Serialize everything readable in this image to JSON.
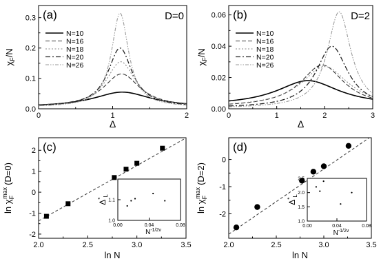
{
  "chart_data": [
    {
      "panel": "a",
      "type": "line",
      "panel_label": "(a)",
      "corner_label": "D=0",
      "xlabel": "Δ",
      "ylabel": "χF/N",
      "ylabel_main": "χ",
      "ylabel_sub": "F",
      "ylabel_tail": "/N",
      "xlim": [
        0,
        2
      ],
      "ylim": [
        0,
        0.34
      ],
      "xticks": [
        "0",
        "1",
        "2"
      ],
      "yticks": [
        "0.0",
        "0.1",
        "0.2",
        "0.3"
      ],
      "legend_position": "upper-left",
      "series": [
        {
          "name": "N=10",
          "peak_x": 1.13,
          "peak_y": 0.055,
          "base": 0.005,
          "width": 0.48
        },
        {
          "name": "N=16",
          "peak_x": 1.12,
          "peak_y": 0.115,
          "base": 0.005,
          "width": 0.3
        },
        {
          "name": "N=18",
          "peak_x": 1.11,
          "peak_y": 0.155,
          "base": 0.005,
          "width": 0.24
        },
        {
          "name": "N=20",
          "peak_x": 1.1,
          "peak_y": 0.2,
          "base": 0.005,
          "width": 0.2
        },
        {
          "name": "N=26",
          "peak_x": 1.1,
          "peak_y": 0.315,
          "base": 0.005,
          "width": 0.14
        }
      ]
    },
    {
      "panel": "b",
      "type": "line",
      "panel_label": "(b)",
      "corner_label": "D=2",
      "xlabel": "Δ",
      "ylabel": "χF/N",
      "ylabel_main": "χ",
      "ylabel_sub": "F",
      "ylabel_tail": "/N",
      "xlim": [
        0,
        3
      ],
      "ylim": [
        0,
        0.066
      ],
      "xticks": [
        "0",
        "1",
        "2",
        "3"
      ],
      "yticks": [
        "0.00",
        "0.02",
        "0.04",
        "0.06"
      ],
      "legend_position": "upper-left",
      "series": [
        {
          "name": "N=10",
          "peak_x": 1.65,
          "peak_y": 0.018,
          "base": 0.002,
          "width": 0.8
        },
        {
          "name": "N=16",
          "peak_x": 1.95,
          "peak_y": 0.028,
          "base": 0.001,
          "width": 0.55
        },
        {
          "name": "N=18",
          "peak_x": 2.0,
          "peak_y": 0.027,
          "base": 0.001,
          "width": 0.6
        },
        {
          "name": "N=20",
          "peak_x": 2.15,
          "peak_y": 0.04,
          "base": 0.0005,
          "width": 0.4
        },
        {
          "name": "N=26",
          "peak_x": 2.3,
          "peak_y": 0.062,
          "base": 0.0003,
          "width": 0.3
        }
      ]
    },
    {
      "panel": "c",
      "type": "scatter",
      "panel_label": "(c)",
      "xlabel": "ln N",
      "ylabel": "ln χF max (D=0)",
      "ylabel_pre": "ln χ",
      "ylabel_sub": "F",
      "ylabel_sup": "max",
      "ylabel_post": "(D=0)",
      "marker": "square",
      "xlim": [
        2.0,
        3.5
      ],
      "ylim": [
        -2.2,
        2.6
      ],
      "xticks": [
        "2.0",
        "2.5",
        "3.0",
        "3.5"
      ],
      "yticks": [
        "-2",
        "-1",
        "0",
        "1",
        "2"
      ],
      "points": [
        {
          "x": 2.08,
          "y": -1.15
        },
        {
          "x": 2.3,
          "y": -0.55
        },
        {
          "x": 2.77,
          "y": 0.7
        },
        {
          "x": 2.89,
          "y": 1.1
        },
        {
          "x": 3.0,
          "y": 1.38
        },
        {
          "x": 3.26,
          "y": 2.1
        }
      ],
      "fit_line": {
        "x": [
          2.0,
          3.5
        ],
        "y": [
          -1.37,
          2.59
        ]
      },
      "inset": {
        "xlabel": "N^-1/2ν",
        "ylabel": "Δ*L",
        "xlim": [
          0,
          0.08
        ],
        "ylim": [
          1.0,
          1.2
        ],
        "xticks": [
          "0.00",
          "0.04",
          "0.08"
        ],
        "yticks": [
          "1.0",
          "1.1"
        ],
        "points": [
          {
            "x": 0.012,
            "y": 1.07
          },
          {
            "x": 0.017,
            "y": 1.095
          },
          {
            "x": 0.022,
            "y": 1.105
          },
          {
            "x": 0.045,
            "y": 1.13
          },
          {
            "x": 0.06,
            "y": 1.095
          }
        ]
      }
    },
    {
      "panel": "d",
      "type": "scatter",
      "panel_label": "(d)",
      "xlabel": "ln N",
      "ylabel": "ln χF max (D=2)",
      "ylabel_pre": "ln χ",
      "ylabel_sub": "F",
      "ylabel_sup": "max",
      "ylabel_post": "(D=2)",
      "marker": "circle",
      "xlim": [
        2.0,
        3.5
      ],
      "ylim": [
        -2.9,
        0.8
      ],
      "xticks": [
        "2.0",
        "2.5",
        "3.0",
        "3.5"
      ],
      "yticks": [
        "-2",
        "-1",
        "0"
      ],
      "points": [
        {
          "x": 2.08,
          "y": -2.5
        },
        {
          "x": 2.3,
          "y": -1.75
        },
        {
          "x": 2.77,
          "y": -0.78
        },
        {
          "x": 2.89,
          "y": -0.45
        },
        {
          "x": 3.0,
          "y": -0.25
        },
        {
          "x": 3.26,
          "y": 0.5
        }
      ],
      "fit_line": {
        "x": [
          2.0,
          3.5
        ],
        "y": [
          -2.75,
          0.85
        ]
      },
      "inset": {
        "xlabel": "N^-1/2ν",
        "ylabel": "Δ*L",
        "xlim": [
          0,
          0.08
        ],
        "ylim": [
          1.0,
          2.5
        ],
        "xticks": [
          "0.00",
          "0.04",
          "0.08"
        ],
        "yticks": [
          "1.0",
          "1.5",
          "2.0",
          "2.5"
        ],
        "points": [
          {
            "x": 0.012,
            "y": 2.2
          },
          {
            "x": 0.017,
            "y": 2.05
          },
          {
            "x": 0.022,
            "y": 2.4
          },
          {
            "x": 0.045,
            "y": 1.6
          },
          {
            "x": 0.06,
            "y": 2.0
          }
        ]
      }
    }
  ]
}
